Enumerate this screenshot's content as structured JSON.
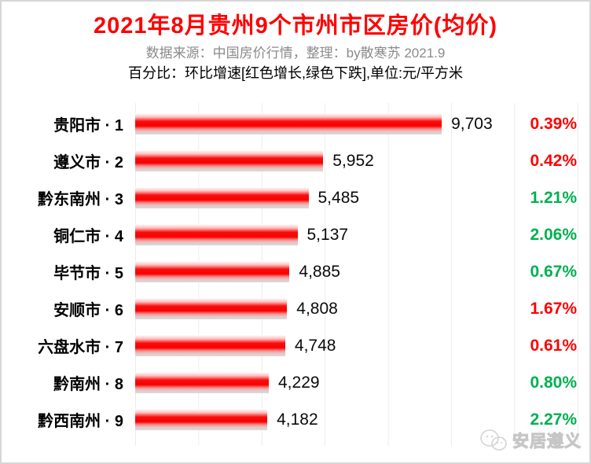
{
  "header": {
    "title": "2021年8月贵州9个市州市区房价(均价)",
    "subtitle_source": "数据来源：中国房价行情，整理：by散寒苏 2021.9",
    "subtitle_note": "百分比：环比增速[红色增长,绿色下跌],单位:元/平方米"
  },
  "colors": {
    "title": "#ff0000",
    "subtitle_gray": "#8a8a8a",
    "bar_red": "#f70000",
    "increase_red": "#ff0000",
    "decrease_green": "#00b050",
    "grid": "#ececec"
  },
  "chart_data": {
    "type": "bar",
    "orientation": "horizontal",
    "title": "2021年8月贵州9个市州市区房价(均价)",
    "unit": "元/平方米",
    "categories": [
      "贵阳市 · 1",
      "遵义市 · 2",
      "黔东南州 · 3",
      "铜仁市 · 4",
      "毕节市 · 5",
      "安顺市 · 6",
      "六盘水市 · 7",
      "黔南州 · 8",
      "黔西南州 · 9"
    ],
    "values": [
      9703,
      5952,
      5485,
      5137,
      4885,
      4808,
      4748,
      4229,
      4182
    ],
    "value_labels": [
      "9,703",
      "5,952",
      "5,485",
      "5,137",
      "4,885",
      "4,808",
      "4,748",
      "4,229",
      "4,182"
    ],
    "change_percent": [
      "0.39%",
      "0.42%",
      "1.21%",
      "2.06%",
      "0.67%",
      "1.67%",
      "0.61%",
      "0.80%",
      "2.27%"
    ],
    "change_direction": [
      "up",
      "up",
      "down",
      "down",
      "down",
      "up",
      "up",
      "down",
      "down"
    ],
    "legend": "红色增长, 绿色下跌",
    "xlim": [
      0,
      14000
    ],
    "grid_interval": 2000,
    "grid": "vertical-faint",
    "legend_position": "none"
  },
  "watermark": {
    "label": "安居遵义",
    "icon": "chat-bubbles-logo-icon"
  }
}
